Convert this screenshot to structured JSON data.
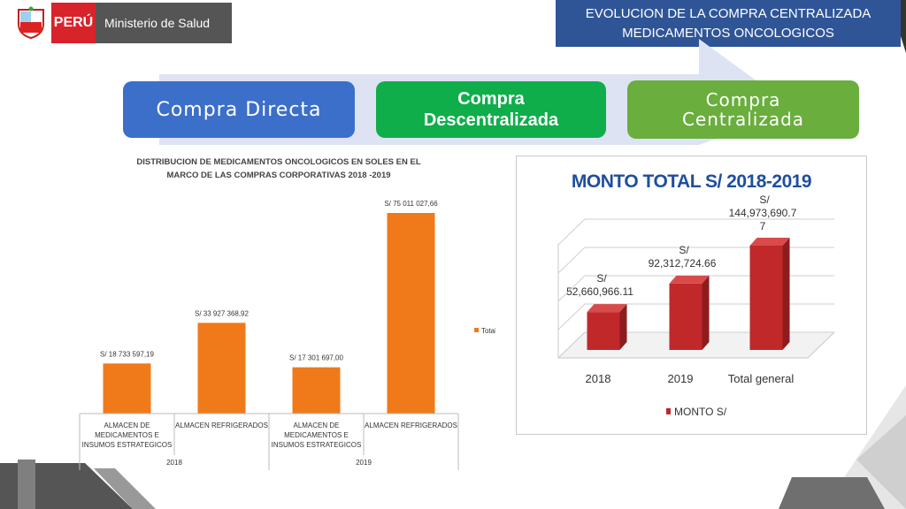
{
  "header": {
    "peru": "PERÚ",
    "ministry": "Ministerio de Salud",
    "title_line1": "EVOLUCION DE LA COMPRA CENTRALIZADA",
    "title_line2": "MEDICAMENTOS ONCOLOGICOS"
  },
  "stages": {
    "s1": "Compra Directa",
    "s2_line1": "Compra",
    "s2_line2": "Descentralizada",
    "s3_line1": "Compra",
    "s3_line2": "Centralizada"
  },
  "chart_data": [
    {
      "type": "bar",
      "title": "DISTRIBUCION DE MEDICAMENTOS  ONCOLOGICOS EN SOLES  EN EL MARCO DE LAS COMPRAS CORPORATIVAS 2018 -2019",
      "title_line1": "DISTRIBUCION DE MEDICAMENTOS  ONCOLOGICOS EN SOLES  EN EL",
      "title_line2": "MARCO DE LAS COMPRAS CORPORATIVAS 2018 -2019",
      "categories": [
        {
          "name": "ALMACEN DE MEDICAMENTOS E INSUMOS ESTRATEGICOS",
          "lines": [
            "ALMACEN DE",
            "MEDICAMENTOS E",
            "INSUMOS ESTRATEGICOS"
          ],
          "group": "2018"
        },
        {
          "name": "ALMACEN REFRIGERADOS",
          "lines": [
            "ALMACEN REFRIGERADOS"
          ],
          "group": "2018"
        },
        {
          "name": "ALMACEN DE MEDICAMENTOS E INSUMOS ESTRATEGICOS",
          "lines": [
            "ALMACEN DE",
            "MEDICAMENTOS E",
            "INSUMOS ESTRATEGICOS"
          ],
          "group": "2019"
        },
        {
          "name": "ALMACEN REFRIGERADOS",
          "lines": [
            "ALMACEN REFRIGERADOS"
          ],
          "group": "2019"
        }
      ],
      "groups": [
        "2018",
        "2019"
      ],
      "series": [
        {
          "name": "Total",
          "values": [
            18733597.19,
            33927368.92,
            17301697.0,
            75011027.66
          ],
          "color": "#f07a1a"
        }
      ],
      "data_labels": [
        "S/ 18 733 597,19",
        "S/ 33 927 368,92",
        "S/ 17 301 697,00",
        "S/ 75 011 027,66"
      ],
      "ylim": [
        0,
        75011027.66
      ],
      "legend": "right",
      "grid": false
    },
    {
      "type": "bar",
      "title": "MONTO TOTAL S/ 2018-2019",
      "categories": [
        "2018",
        "2019",
        "Total general"
      ],
      "series": [
        {
          "name": "MONTO S/",
          "values": [
            52660966.11,
            92312724.66,
            144973690.77
          ],
          "color": "#c0282a"
        }
      ],
      "data_labels": [
        [
          "S/",
          "52,660,966.11"
        ],
        [
          "S/",
          "92,312,724.66"
        ],
        [
          "S/",
          "144,973,690.7",
          "7"
        ]
      ],
      "ylim": [
        0,
        144973690.77
      ],
      "legend": "bottom",
      "grid": true,
      "style": "3d"
    }
  ]
}
